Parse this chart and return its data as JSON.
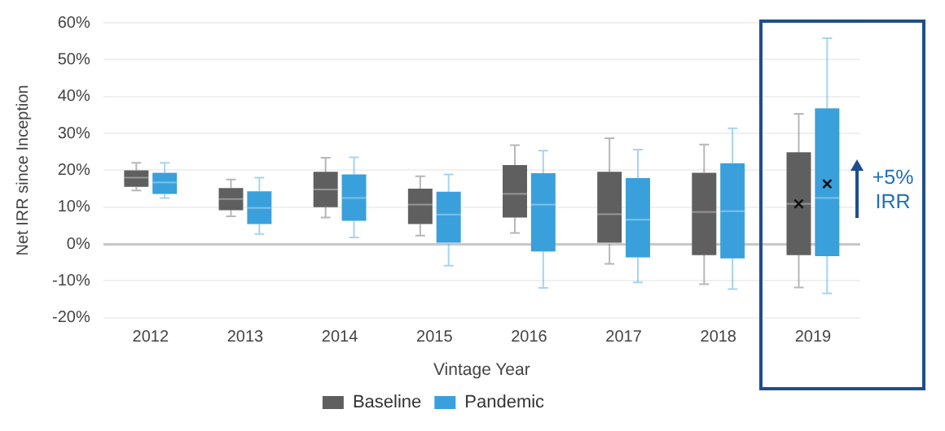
{
  "chart_data": {
    "type": "box",
    "xlabel": "Vintage Year",
    "ylabel": "Net IRR since Inception",
    "categories": [
      "2012",
      "2013",
      "2014",
      "2015",
      "2016",
      "2017",
      "2018",
      "2019"
    ],
    "ylim": [
      -20,
      60
    ],
    "yticks": [
      {
        "value": -20,
        "label": "-20%"
      },
      {
        "value": -10,
        "label": "-10%"
      },
      {
        "value": 0,
        "label": "0%"
      },
      {
        "value": 10,
        "label": "10%"
      },
      {
        "value": 20,
        "label": "20%"
      },
      {
        "value": 30,
        "label": "30%"
      },
      {
        "value": 40,
        "label": "40%"
      },
      {
        "value": 50,
        "label": "50%"
      },
      {
        "value": 60,
        "label": "60%"
      }
    ],
    "grid": "y",
    "legend": "bottom",
    "annotations": [
      "+5% IRR"
    ],
    "series": [
      {
        "name": "Baseline",
        "color": "#5f5f5f",
        "boxes": [
          {
            "low": 14.5,
            "q1": 15.5,
            "median": 18,
            "q3": 20,
            "high": 22
          },
          {
            "low": 7.5,
            "q1": 9.2,
            "median": 12.2,
            "q3": 15.2,
            "high": 17.5
          },
          {
            "low": 7.2,
            "q1": 10,
            "median": 14.8,
            "q3": 19.6,
            "high": 23.4
          },
          {
            "low": 2.3,
            "q1": 5.4,
            "median": 10.7,
            "q3": 15,
            "high": 18.4
          },
          {
            "low": 3,
            "q1": 7.2,
            "median": 13.6,
            "q3": 21.4,
            "high": 26.8
          },
          {
            "low": -5.4,
            "q1": 0,
            "median": 8.1,
            "q3": 19.6,
            "high": 28.7
          },
          {
            "low": -10.9,
            "q1": -3,
            "median": 8.7,
            "q3": 19.3,
            "high": 27
          },
          {
            "low": -11.8,
            "q1": -3,
            "median": 10.9,
            "q3": 24.9,
            "high": 35.3,
            "mean": 10.9
          }
        ]
      },
      {
        "name": "Pandemic",
        "color": "#3aa0dc",
        "boxes": [
          {
            "low": 12.5,
            "q1": 13.6,
            "median": 16.7,
            "q3": 19.3,
            "high": 22
          },
          {
            "low": 2.7,
            "q1": 5.4,
            "median": 9.8,
            "q3": 14.3,
            "high": 18
          },
          {
            "low": 1.8,
            "q1": 6.3,
            "median": 12.5,
            "q3": 18.9,
            "high": 23.5
          },
          {
            "low": -5.9,
            "q1": 0,
            "median": 8,
            "q3": 14.2,
            "high": 18.9
          },
          {
            "low": -11.9,
            "q1": -2,
            "median": 10.7,
            "q3": 19.2,
            "high": 25.3
          },
          {
            "low": -10.4,
            "q1": -3.6,
            "median": 6.6,
            "q3": 17.9,
            "high": 25.6
          },
          {
            "low": -12.2,
            "q1": -3.9,
            "median": 8.9,
            "q3": 21.9,
            "high": 31.4
          },
          {
            "low": -13.4,
            "q1": -3.3,
            "median": 12.5,
            "q3": 36.8,
            "high": 55.8,
            "mean": 16.3
          }
        ]
      }
    ]
  }
}
